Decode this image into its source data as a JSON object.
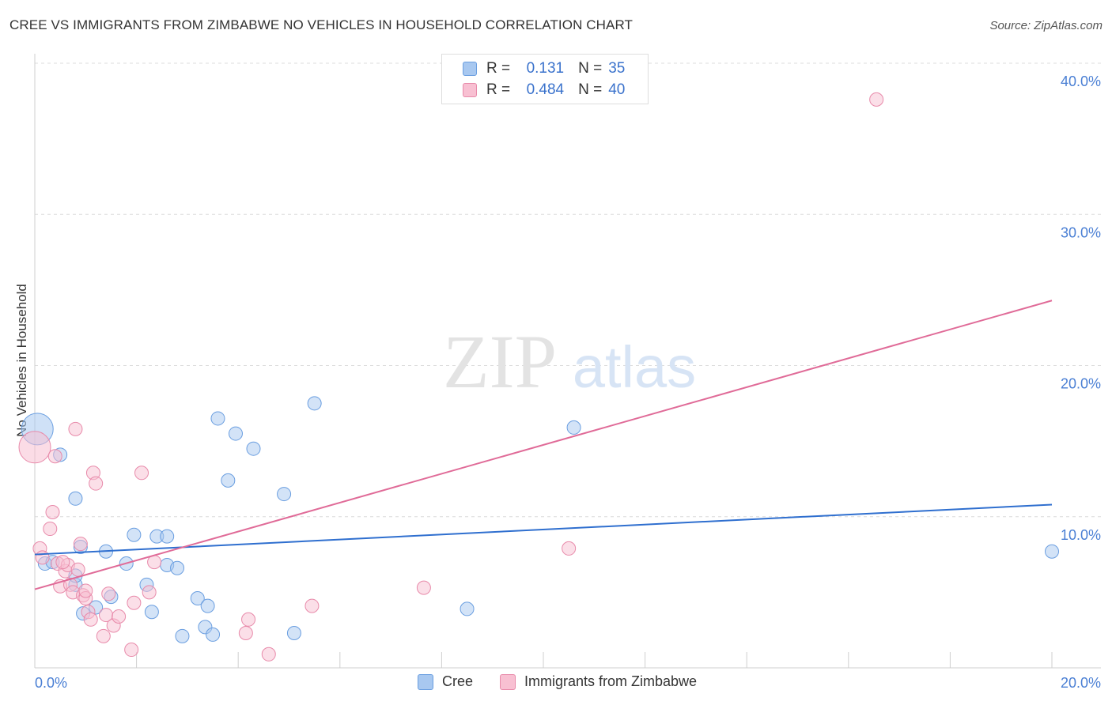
{
  "title": "CREE VS IMMIGRANTS FROM ZIMBABWE NO VEHICLES IN HOUSEHOLD CORRELATION CHART",
  "source": "Source: ZipAtlas.com",
  "watermark": {
    "zip": "ZIP",
    "atlas": "atlas"
  },
  "legend": {
    "r_label": "R =",
    "n_label": "N =",
    "rows": [
      {
        "r": "0.131",
        "n": "35",
        "color": "#a8c8f0",
        "border": "#6a9ee0"
      },
      {
        "r": "0.484",
        "n": "40",
        "color": "#f8c0d2",
        "border": "#e88aaa"
      }
    ]
  },
  "bottom_legend": [
    {
      "label": "Cree",
      "color": "#a8c8f0",
      "border": "#6a9ee0"
    },
    {
      "label": "Immigrants from Zimbabwe",
      "color": "#f8c0d2",
      "border": "#e88aaa"
    }
  ],
  "chart_data": {
    "type": "scatter",
    "title": "CREE VS IMMIGRANTS FROM ZIMBABWE NO VEHICLES IN HOUSEHOLD CORRELATION CHART",
    "xlabel": "",
    "ylabel": "No Vehicles in Household",
    "xlim": [
      0,
      20
    ],
    "ylim": [
      0,
      40
    ],
    "x_tick_labels": [
      "0.0%",
      "20.0%"
    ],
    "y_ticks": [
      10,
      20,
      30,
      40
    ],
    "y_tick_labels": [
      "10.0%",
      "20.0%",
      "30.0%",
      "40.0%"
    ],
    "grid": true,
    "legend_position": "top-center",
    "series": [
      {
        "name": "Cree",
        "color": "#6a9ee0",
        "fill": "#a8c8f0",
        "trend": {
          "x": [
            0,
            20
          ],
          "y": [
            7.5,
            10.8
          ],
          "color": "#2f6fcf"
        },
        "points": [
          {
            "x": 0.05,
            "y": 15.8,
            "big": true
          },
          {
            "x": 0.5,
            "y": 14.1
          },
          {
            "x": 0.2,
            "y": 6.9
          },
          {
            "x": 0.35,
            "y": 7.0
          },
          {
            "x": 0.8,
            "y": 5.5
          },
          {
            "x": 0.8,
            "y": 11.2
          },
          {
            "x": 0.9,
            "y": 8.0
          },
          {
            "x": 0.8,
            "y": 6.1
          },
          {
            "x": 0.95,
            "y": 3.6
          },
          {
            "x": 1.4,
            "y": 7.7
          },
          {
            "x": 1.5,
            "y": 4.7
          },
          {
            "x": 1.8,
            "y": 6.9
          },
          {
            "x": 1.95,
            "y": 8.8
          },
          {
            "x": 2.2,
            "y": 5.5
          },
          {
            "x": 2.3,
            "y": 3.7
          },
          {
            "x": 2.4,
            "y": 8.7
          },
          {
            "x": 2.6,
            "y": 8.7
          },
          {
            "x": 2.6,
            "y": 6.8
          },
          {
            "x": 2.8,
            "y": 6.6
          },
          {
            "x": 2.9,
            "y": 2.1
          },
          {
            "x": 3.2,
            "y": 4.6
          },
          {
            "x": 3.4,
            "y": 4.1
          },
          {
            "x": 3.35,
            "y": 2.7
          },
          {
            "x": 3.5,
            "y": 2.2
          },
          {
            "x": 3.6,
            "y": 16.5
          },
          {
            "x": 3.8,
            "y": 12.4
          },
          {
            "x": 3.95,
            "y": 15.5
          },
          {
            "x": 4.3,
            "y": 14.5
          },
          {
            "x": 4.9,
            "y": 11.5
          },
          {
            "x": 5.1,
            "y": 2.3
          },
          {
            "x": 5.5,
            "y": 17.5
          },
          {
            "x": 8.5,
            "y": 3.9
          },
          {
            "x": 10.6,
            "y": 15.9
          },
          {
            "x": 20.0,
            "y": 7.7
          },
          {
            "x": 1.2,
            "y": 4.0
          }
        ]
      },
      {
        "name": "Immigrants from Zimbabwe",
        "color": "#e88aaa",
        "fill": "#f8c0d2",
        "trend": {
          "x": [
            0,
            20
          ],
          "y": [
            5.2,
            24.3
          ],
          "color": "#e06b98"
        },
        "points": [
          {
            "x": 0.0,
            "y": 14.6,
            "big": true
          },
          {
            "x": 0.1,
            "y": 7.9
          },
          {
            "x": 0.15,
            "y": 7.3
          },
          {
            "x": 0.3,
            "y": 9.2
          },
          {
            "x": 0.35,
            "y": 10.3
          },
          {
            "x": 0.4,
            "y": 14.0
          },
          {
            "x": 0.45,
            "y": 6.9
          },
          {
            "x": 0.5,
            "y": 5.4
          },
          {
            "x": 0.6,
            "y": 6.4
          },
          {
            "x": 0.65,
            "y": 6.8
          },
          {
            "x": 0.7,
            "y": 5.5
          },
          {
            "x": 0.75,
            "y": 5.0
          },
          {
            "x": 0.8,
            "y": 15.8
          },
          {
            "x": 0.85,
            "y": 6.5
          },
          {
            "x": 0.9,
            "y": 8.2
          },
          {
            "x": 0.95,
            "y": 4.8
          },
          {
            "x": 1.0,
            "y": 4.6
          },
          {
            "x": 1.05,
            "y": 3.7
          },
          {
            "x": 1.1,
            "y": 3.2
          },
          {
            "x": 1.15,
            "y": 12.9
          },
          {
            "x": 1.2,
            "y": 12.2
          },
          {
            "x": 1.35,
            "y": 2.1
          },
          {
            "x": 1.4,
            "y": 3.5
          },
          {
            "x": 1.45,
            "y": 4.9
          },
          {
            "x": 1.55,
            "y": 2.8
          },
          {
            "x": 1.65,
            "y": 3.4
          },
          {
            "x": 1.9,
            "y": 1.2
          },
          {
            "x": 1.95,
            "y": 4.3
          },
          {
            "x": 2.1,
            "y": 12.9
          },
          {
            "x": 2.25,
            "y": 5.0
          },
          {
            "x": 2.35,
            "y": 7.0
          },
          {
            "x": 4.15,
            "y": 2.3
          },
          {
            "x": 4.2,
            "y": 3.2
          },
          {
            "x": 4.6,
            "y": 0.9
          },
          {
            "x": 5.45,
            "y": 4.1
          },
          {
            "x": 7.65,
            "y": 5.3
          },
          {
            "x": 10.5,
            "y": 7.9
          },
          {
            "x": 16.55,
            "y": 37.6
          },
          {
            "x": 0.55,
            "y": 7.0
          },
          {
            "x": 1.0,
            "y": 5.1
          }
        ]
      }
    ]
  }
}
